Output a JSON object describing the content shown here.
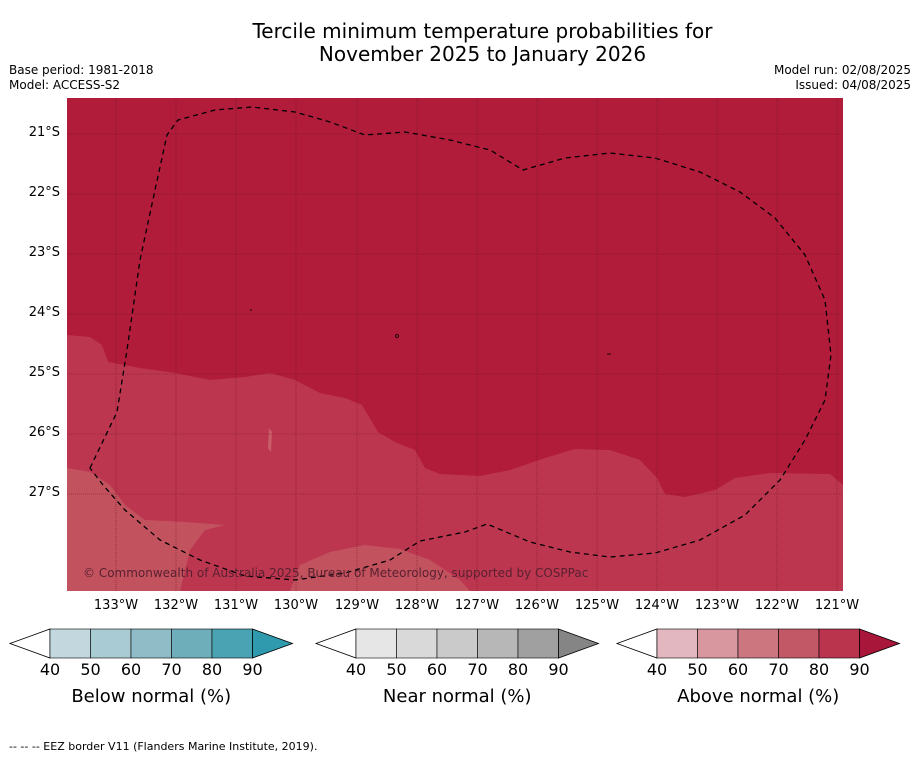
{
  "title_line1": "Tercile minimum temperature probabilities for",
  "title_line2": "November 2025 to January 2026",
  "base_period": "Base period: 1981-2018",
  "model": "Model: ACCESS-S2",
  "model_run": "Model run: 02/08/2025",
  "issued": "Issued: 04/08/2025",
  "copyright": "© Commonwealth of Australia 2025, Bureau of Meteorology, supported by COSPPac",
  "lat_labels": [
    "21°S",
    "22°S",
    "23°S",
    "24°S",
    "25°S",
    "26°S",
    "27°S"
  ],
  "lon_labels": [
    "133°W",
    "132°W",
    "131°W",
    "130°W",
    "129°W",
    "128°W",
    "127°W",
    "126°W",
    "125°W",
    "124°W",
    "123°W",
    "122°W",
    "121°W"
  ],
  "colorbars": [
    {
      "label": "Below normal (%)",
      "ticks": [
        "40",
        "50",
        "60",
        "70",
        "80",
        "90"
      ],
      "colors": [
        "#c2d8de",
        "#a9ccd4",
        "#8fbcc7",
        "#6eaebb",
        "#4aa3b3",
        "#2f9aad"
      ]
    },
    {
      "label": "Near normal (%)",
      "ticks": [
        "40",
        "50",
        "60",
        "70",
        "80",
        "90"
      ],
      "colors": [
        "#e6e6e6",
        "#d9d9d9",
        "#cacaca",
        "#b7b7b7",
        "#a0a0a0",
        "#858585"
      ]
    },
    {
      "label": "Above normal (%)",
      "ticks": [
        "40",
        "50",
        "60",
        "70",
        "80",
        "90"
      ],
      "colors": [
        "#e2b7bf",
        "#d8969f",
        "#cc7680",
        "#c25865",
        "#b9344c",
        "#a8173a"
      ]
    }
  ],
  "map_colors": {
    "high": "#b01c3a",
    "mid": "#bd3650",
    "low": "#c2525e"
  },
  "footnote": "--  --  -- EEZ border V11 (Flanders Marine Institute, 2019)."
}
